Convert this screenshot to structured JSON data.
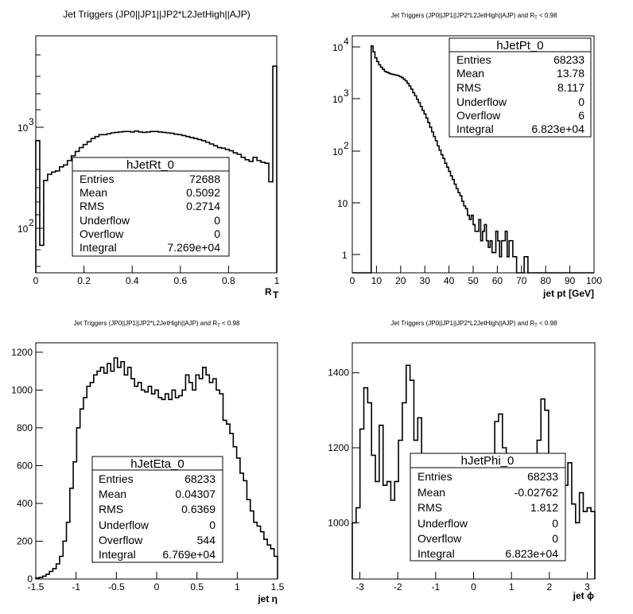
{
  "chart_data": [
    {
      "type": "histogram",
      "title": "Jet Triggers (JP0||JP1||JP2*L2JetHigh||AJP)",
      "xlabel": "R",
      "xlabel_sub": "T",
      "ylabel": "",
      "xlim": [
        0,
        1
      ],
      "ylim": [
        40,
        9000
      ],
      "yscale": "log",
      "x_ticks": [
        "0",
        "0.2",
        "0.4",
        "0.6",
        "0.8",
        "1"
      ],
      "y_ticks": [
        "10",
        "10"
      ],
      "y_tick_exp": [
        "2",
        "3"
      ],
      "stats": {
        "name": "hJetRt_0",
        "rows": [
          {
            "label": "Entries",
            "value": "72688"
          },
          {
            "label": "Mean",
            "value": "0.5092"
          },
          {
            "label": "RMS",
            "value": "0.2714"
          },
          {
            "label": "Underflow",
            "value": "0"
          },
          {
            "label": "Overflow",
            "value": "0"
          },
          {
            "label": "Integral",
            "value": "7.269e+04"
          }
        ]
      },
      "bin_edges_range": [
        0,
        1
      ],
      "values": [
        820,
        75,
        330,
        380,
        400,
        410,
        450,
        470,
        520,
        580,
        640,
        700,
        750,
        800,
        860,
        900,
        940,
        940,
        960,
        980,
        990,
        1000,
        1010,
        1010,
        1000,
        1020,
        1000,
        990,
        1000,
        1010,
        1010,
        1000,
        990,
        980,
        970,
        950,
        940,
        920,
        900,
        880,
        860,
        840,
        820,
        790,
        760,
        730,
        700,
        690,
        670,
        650,
        620,
        600,
        560,
        530,
        510,
        560,
        520,
        500,
        490,
        320,
        4500
      ]
    },
    {
      "type": "histogram",
      "title": "Jet Triggers (JP0||JP1||JP2*L2JetHigh||AJP) and R",
      "title_sub": "T",
      "title_suffix": " < 0.98",
      "xlabel": "jet pt [GeV]",
      "ylabel": "",
      "xlim": [
        0,
        100
      ],
      "ylim": [
        0.5,
        14000
      ],
      "yscale": "log",
      "x_ticks": [
        "0",
        "10",
        "20",
        "30",
        "40",
        "50",
        "60",
        "70",
        "80",
        "90",
        "100"
      ],
      "y_ticks": [
        "1",
        "10",
        "10",
        "10",
        "10"
      ],
      "y_tick_exp": [
        "",
        "",
        "2",
        "3",
        "4"
      ],
      "stats": {
        "name": "hJetPt_0",
        "rows": [
          {
            "label": "Entries",
            "value": "68233"
          },
          {
            "label": "Mean",
            "value": "13.78"
          },
          {
            "label": "RMS",
            "value": "8.117"
          },
          {
            "label": "Underflow",
            "value": "0"
          },
          {
            "label": "Overflow",
            "value": "6"
          },
          {
            "label": "Integral",
            "value": "6.823e+04"
          }
        ]
      },
      "bin_edges_range": [
        0,
        100
      ],
      "values": [
        0,
        0,
        0,
        0,
        0,
        0,
        0,
        0,
        0,
        0,
        9000,
        7000,
        5400,
        4600,
        4000,
        3600,
        3300,
        3000,
        2900,
        2800,
        2700,
        2650,
        2600,
        2550,
        2500,
        2400,
        2300,
        2150,
        2000,
        1800,
        1600,
        1400,
        1200,
        1050,
        900,
        780,
        660,
        560,
        480,
        400,
        330,
        270,
        220,
        180,
        150,
        120,
        100,
        82,
        70,
        57,
        48,
        40,
        33,
        28,
        23,
        19,
        16,
        14,
        11,
        9,
        8,
        6,
        5,
        6,
        4,
        3,
        3,
        5,
        2,
        3,
        4,
        2,
        1.5,
        2,
        1.2,
        1.2,
        3,
        2,
        1,
        2,
        2,
        3,
        1,
        2,
        2,
        1,
        1,
        0.5,
        0.5,
        0.5,
        0.5,
        1,
        1,
        0.5,
        0.5,
        0.5,
        0.5,
        0.5,
        0.5,
        0.5,
        0.5,
        0.5,
        0.5,
        0.5,
        0.5,
        0.5,
        0.5,
        0.5,
        0.5,
        0.5,
        0.5,
        0.5,
        0.5,
        0.5,
        0.5,
        0.5,
        0.5,
        0.5,
        0.5,
        0.5,
        0.5,
        0.5,
        0.5,
        0.5,
        0.5,
        0.5,
        0.5,
        0.5
      ]
    },
    {
      "type": "histogram",
      "title": "Jet Triggers (JP0||JP1||JP2*L2JetHigh||AJP) and R",
      "title_sub": "T",
      "title_suffix": " < 0.98",
      "xlabel": "jet η",
      "ylabel": "",
      "xlim": [
        -1.5,
        1.5
      ],
      "ylim": [
        0,
        1250
      ],
      "yscale": "linear",
      "x_ticks": [
        "-1.5",
        "-1",
        "-0.5",
        "0",
        "0.5",
        "1",
        "1.5"
      ],
      "x_tick_values": [
        -1.5,
        -1,
        -0.5,
        0,
        0.5,
        1,
        1.5
      ],
      "y_ticks": [
        "0",
        "200",
        "400",
        "600",
        "800",
        "1000",
        "1200"
      ],
      "y_tick_values": [
        0,
        200,
        400,
        600,
        800,
        1000,
        1200
      ],
      "stats": {
        "name": "hJetEta_0",
        "rows": [
          {
            "label": "Entries",
            "value": "68233"
          },
          {
            "label": "Mean",
            "value": "0.04307"
          },
          {
            "label": "RMS",
            "value": "0.6369"
          },
          {
            "label": "Underflow",
            "value": "0"
          },
          {
            "label": "Overflow",
            "value": "544"
          },
          {
            "label": "Integral",
            "value": "6.769e+04"
          }
        ]
      },
      "bin_edges_range": [
        -1.5,
        1.5
      ],
      "values": [
        5,
        8,
        15,
        25,
        40,
        55,
        80,
        120,
        200,
        300,
        480,
        620,
        800,
        900,
        960,
        1020,
        1040,
        1080,
        1100,
        1120,
        1090,
        1140,
        1100,
        1170,
        1120,
        1150,
        1080,
        1120,
        1060,
        1020,
        1040,
        1000,
        990,
        1020,
        980,
        1000,
        960,
        950,
        980,
        950,
        1000,
        960,
        970,
        1000,
        1080,
        1040,
        1000,
        1080,
        1060,
        1120,
        1080,
        1040,
        1060,
        1000,
        980,
        840,
        820,
        770,
        700,
        640,
        560,
        520,
        420,
        360,
        300,
        280,
        250,
        210,
        180,
        160,
        120
      ]
    },
    {
      "type": "histogram",
      "title": "Jet Triggers (JP0||JP1||JP2*L2JetHigh||AJP) and R",
      "title_sub": "T",
      "title_suffix": " < 0.98",
      "xlabel": "jet ϕ",
      "ylabel": "",
      "xlim": [
        -3.2,
        3.2
      ],
      "ylim": [
        850,
        1480
      ],
      "yscale": "linear",
      "x_ticks": [
        "-3",
        "-2",
        "-1",
        "0",
        "1",
        "2",
        "3"
      ],
      "x_tick_values": [
        -3,
        -2,
        -1,
        0,
        1,
        2,
        3
      ],
      "y_ticks": [
        "1000",
        "1200",
        "1400"
      ],
      "y_tick_values": [
        1000,
        1200,
        1400
      ],
      "stats": {
        "name": "hJetPhi_0",
        "rows": [
          {
            "label": "Entries",
            "value": "68233"
          },
          {
            "label": "Mean",
            "value": "-0.02762"
          },
          {
            "label": "RMS",
            "value": "1.812"
          },
          {
            "label": "Underflow",
            "value": "0"
          },
          {
            "label": "Overflow",
            "value": "0"
          },
          {
            "label": "Integral",
            "value": "6.823e+04"
          }
        ]
      },
      "bin_edges_range": [
        -3.2,
        3.2
      ],
      "values": [
        1000,
        1040,
        1250,
        1360,
        1320,
        1180,
        1110,
        1260,
        1100,
        1110,
        1060,
        1110,
        1220,
        1320,
        1420,
        1380,
        1220,
        1280,
        1060,
        1040,
        1000,
        1080,
        1000,
        1050,
        1020,
        940,
        1010,
        1030,
        1130,
        1060,
        1000,
        1090,
        1060,
        1120,
        1000,
        1060,
        1140,
        1270,
        1290,
        1200,
        1140,
        1050,
        1100,
        1120,
        1100,
        1010,
        980,
        1110,
        1220,
        1330,
        1300,
        1100,
        1080,
        1000,
        1050,
        1100,
        1160,
        1050,
        1000,
        1080,
        1030,
        1040,
        1030
      ]
    }
  ]
}
